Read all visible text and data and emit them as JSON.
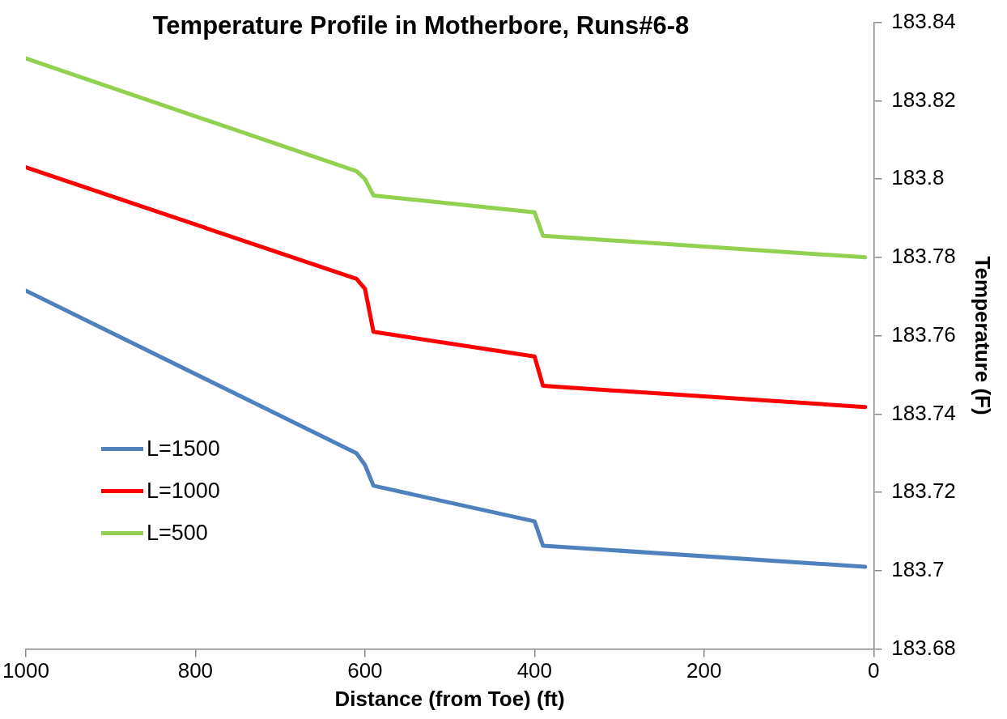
{
  "chart_data": {
    "type": "line",
    "title": "Temperature Profile in Motherbore, Runs#6-8",
    "xlabel": "Distance (from Toe) (ft)",
    "ylabel": "Temperature (F)",
    "x": [
      1000,
      610,
      600,
      590,
      400,
      390,
      10
    ],
    "series": [
      {
        "name": "L=1500",
        "color": "#4f81bd",
        "values": [
          183.7715,
          183.73,
          183.727,
          183.7217,
          183.7126,
          183.7064,
          183.701
        ]
      },
      {
        "name": "L=1000",
        "color": "#ff0000",
        "values": [
          183.803,
          183.7745,
          183.772,
          183.761,
          183.7547,
          183.7472,
          183.7418
        ]
      },
      {
        "name": "L=500",
        "color": "#92d050",
        "values": [
          183.8308,
          183.802,
          183.8,
          183.7958,
          183.7915,
          183.7855,
          183.78
        ]
      }
    ],
    "xlim": [
      1000,
      0
    ],
    "xticks": [
      1000,
      800,
      600,
      400,
      200,
      0
    ],
    "ylim": [
      183.68,
      183.84
    ],
    "yticks": [
      183.68,
      183.7,
      183.72,
      183.74,
      183.76,
      183.78,
      183.8,
      183.82,
      183.84
    ],
    "grid": false,
    "legend": "left",
    "marker": "none",
    "line_style": "solid"
  }
}
